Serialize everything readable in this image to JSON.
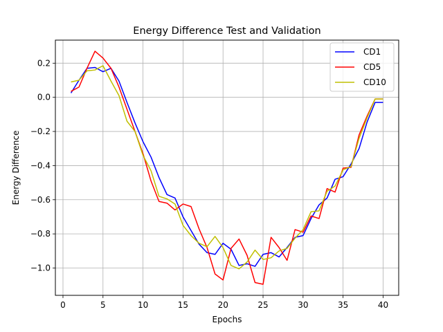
{
  "chart_data": {
    "type": "line",
    "title": "Energy Difference Test and Validation",
    "xlabel": "Epochs",
    "ylabel": "Energy Difference",
    "xlim": [
      -0.95,
      41.95
    ],
    "ylim": [
      -1.16,
      0.335
    ],
    "xticks": [
      0,
      5,
      10,
      15,
      20,
      25,
      30,
      35,
      40
    ],
    "yticks": [
      -1.0,
      -0.8,
      -0.6,
      -0.4,
      -0.2,
      0.0,
      0.2
    ],
    "ytick_labels": [
      "−1.0",
      "−0.8",
      "−0.6",
      "−0.4",
      "−0.2",
      "0.0",
      "0.2"
    ],
    "grid": true,
    "legend_position": "top-right",
    "x": [
      1,
      2,
      3,
      4,
      5,
      6,
      7,
      8,
      9,
      10,
      11,
      12,
      13,
      14,
      15,
      16,
      17,
      18,
      19,
      20,
      21,
      22,
      23,
      24,
      25,
      26,
      27,
      28,
      29,
      30,
      31,
      32,
      33,
      34,
      35,
      36,
      37,
      38,
      39,
      40
    ],
    "series": [
      {
        "name": "CD1",
        "color": "#0000ff",
        "values": [
          0.025,
          0.1,
          0.17,
          0.175,
          0.15,
          0.17,
          0.095,
          -0.03,
          -0.15,
          -0.26,
          -0.35,
          -0.47,
          -0.57,
          -0.59,
          -0.7,
          -0.78,
          -0.86,
          -0.91,
          -0.92,
          -0.855,
          -0.89,
          -0.985,
          -0.975,
          -0.99,
          -0.92,
          -0.91,
          -0.935,
          -0.88,
          -0.82,
          -0.81,
          -0.71,
          -0.63,
          -0.59,
          -0.48,
          -0.465,
          -0.39,
          -0.3,
          -0.145,
          -0.03,
          -0.03
        ]
      },
      {
        "name": "CD5",
        "color": "#ff0000",
        "values": [
          0.035,
          0.06,
          0.17,
          0.27,
          0.23,
          0.17,
          0.06,
          -0.07,
          -0.2,
          -0.33,
          -0.49,
          -0.61,
          -0.62,
          -0.66,
          -0.625,
          -0.64,
          -0.77,
          -0.88,
          -1.035,
          -1.07,
          -0.885,
          -0.83,
          -0.925,
          -1.085,
          -1.095,
          -0.82,
          -0.88,
          -0.955,
          -0.775,
          -0.79,
          -0.695,
          -0.71,
          -0.535,
          -0.555,
          -0.415,
          -0.41,
          -0.22,
          -0.11,
          -0.01,
          -0.01
        ]
      },
      {
        "name": "CD10",
        "color": "#bfbf00",
        "values": [
          0.09,
          0.1,
          0.155,
          0.16,
          0.185,
          0.095,
          0.01,
          -0.14,
          -0.2,
          -0.34,
          -0.43,
          -0.58,
          -0.595,
          -0.625,
          -0.75,
          -0.81,
          -0.855,
          -0.875,
          -0.815,
          -0.88,
          -0.985,
          -1.005,
          -0.965,
          -0.895,
          -0.95,
          -0.94,
          -0.9,
          -0.885,
          -0.825,
          -0.775,
          -0.67,
          -0.665,
          -0.55,
          -0.52,
          -0.425,
          -0.405,
          -0.24,
          -0.12,
          -0.01,
          -0.01
        ]
      }
    ]
  }
}
